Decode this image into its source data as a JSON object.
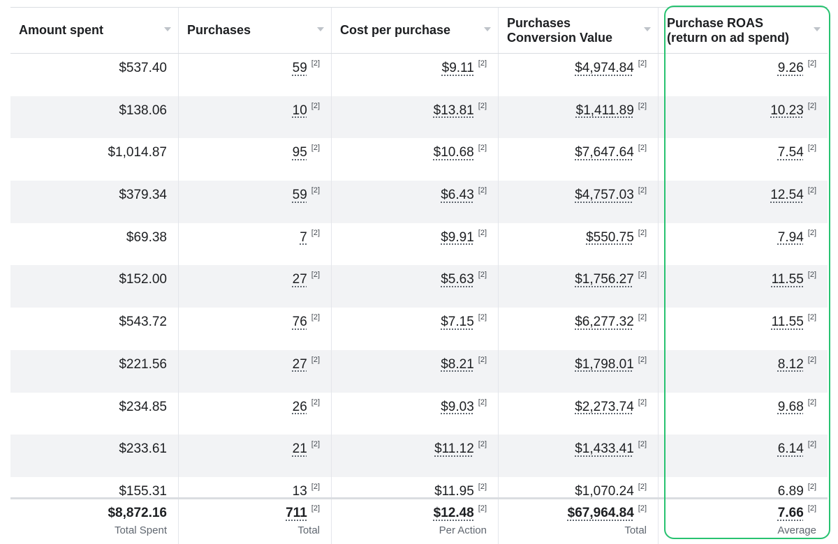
{
  "headers": [
    {
      "label": "Amount spent"
    },
    {
      "label": "Purchases"
    },
    {
      "label": "Cost per purchase"
    },
    {
      "label": "Purchases Conversion Value"
    },
    {
      "label": "Purchase ROAS (return on ad spend)"
    }
  ],
  "note_label": "[2]",
  "rows": [
    [
      "$537.40",
      "59",
      "$9.11",
      "$4,974.84",
      "9.26"
    ],
    [
      "$138.06",
      "10",
      "$13.81",
      "$1,411.89",
      "10.23"
    ],
    [
      "$1,014.87",
      "95",
      "$10.68",
      "$7,647.64",
      "7.54"
    ],
    [
      "$379.34",
      "59",
      "$6.43",
      "$4,757.03",
      "12.54"
    ],
    [
      "$69.38",
      "7",
      "$9.91",
      "$550.75",
      "7.94"
    ],
    [
      "$152.00",
      "27",
      "$5.63",
      "$1,756.27",
      "11.55"
    ],
    [
      "$543.72",
      "76",
      "$7.15",
      "$6,277.32",
      "11.55"
    ],
    [
      "$221.56",
      "27",
      "$8.21",
      "$1,798.01",
      "8.12"
    ],
    [
      "$234.85",
      "26",
      "$9.03",
      "$2,273.74",
      "9.68"
    ],
    [
      "$233.61",
      "21",
      "$11.12",
      "$1,433.41",
      "6.14"
    ],
    [
      "$155.31",
      "13",
      "$11.95",
      "$1,070.24",
      "6.89"
    ]
  ],
  "totals": [
    {
      "value": "$8,872.16",
      "caption": "Total Spent"
    },
    {
      "value": "711",
      "caption": "Total"
    },
    {
      "value": "$12.48",
      "caption": "Per Action"
    },
    {
      "value": "$67,964.84",
      "caption": "Total"
    },
    {
      "value": "7.66",
      "caption": "Average"
    }
  ],
  "colors": {
    "highlight": "#27c270",
    "row_alt": "#f2f3f5",
    "border": "#e4e6eb"
  },
  "icons": {
    "sort": "chevron-down-icon"
  }
}
